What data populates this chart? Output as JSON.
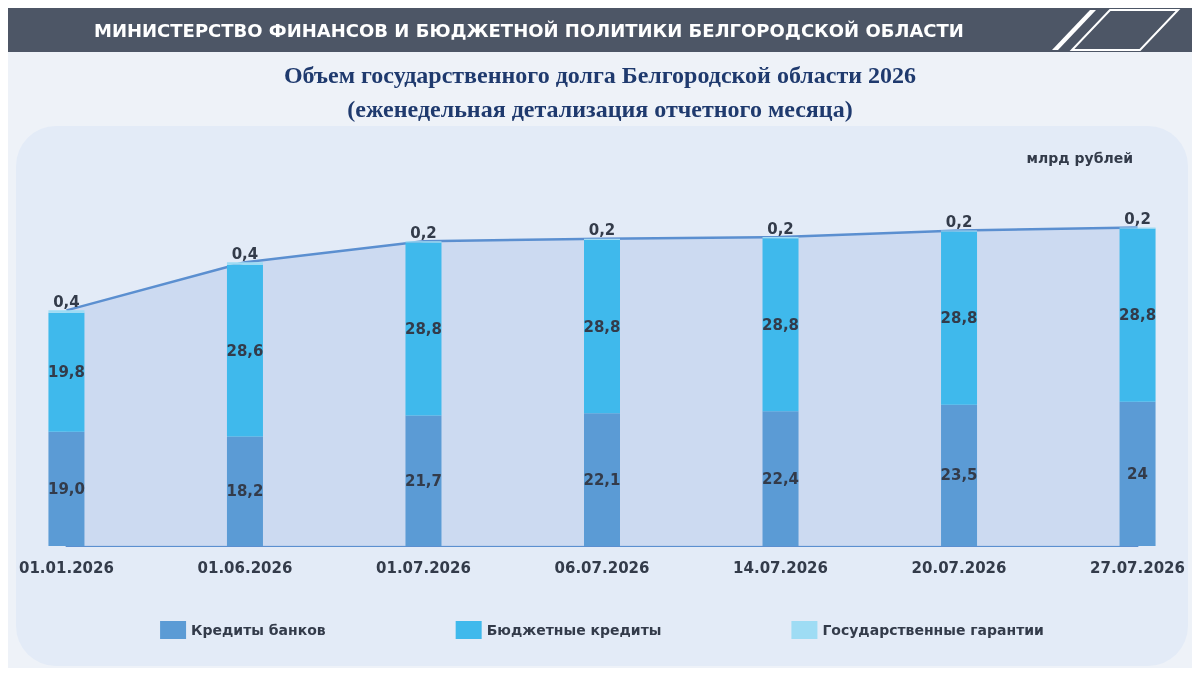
{
  "chart_data": {
    "type": "bar",
    "stacked": true,
    "title": "Объем государственного долга Белгородской области 2026\n(еженедельная детализация отчетного месяца)",
    "annotations": [
      "МИНИСТЕРСТВО ФИНАНСОВ И БЮДЖЕТНОЙ ПОЛИТИКИ БЕЛГОРОДСКОЙ ОБЛАСТИ",
      "млрд рублей"
    ],
    "categories": [
      "01.01.2026",
      "01.06.2026",
      "01.07.2026",
      "06.07.2026",
      "14.07.2026",
      "20.07.2026",
      "27.07.2026"
    ],
    "series": [
      {
        "name": "Кредиты банков",
        "color": "#5b9bd5",
        "values": [
          19.0,
          18.2,
          21.7,
          22.1,
          22.4,
          23.5,
          24
        ],
        "value_labels": [
          "19,0",
          "18,2",
          "21,7",
          "22,1",
          "22,4",
          "23,5",
          "24"
        ]
      },
      {
        "name": "Бюджетные кредиты",
        "color": "#3fb9ec",
        "values": [
          19.8,
          28.6,
          28.8,
          28.8,
          28.8,
          28.8,
          28.8
        ],
        "value_labels": [
          "19,8",
          "28,6",
          "28,8",
          "28,8",
          "28,8",
          "28,8",
          "28,8"
        ]
      },
      {
        "name": "Государственные гарантии",
        "color": "#9edcf4",
        "values": [
          0.4,
          0.4,
          0.2,
          0.2,
          0.2,
          0.2,
          0.2
        ],
        "value_labels": [
          "0,4",
          "0,4",
          "0,2",
          "0,2",
          "0,2",
          "0,2",
          "0,2"
        ]
      },
      {
        "type": "area",
        "color": "#5b8fd0",
        "values": [
          39.2,
          47.2,
          50.7,
          51.1,
          51.4,
          52.5,
          53.0
        ]
      }
    ],
    "legend": "bottom",
    "grid": false
  }
}
